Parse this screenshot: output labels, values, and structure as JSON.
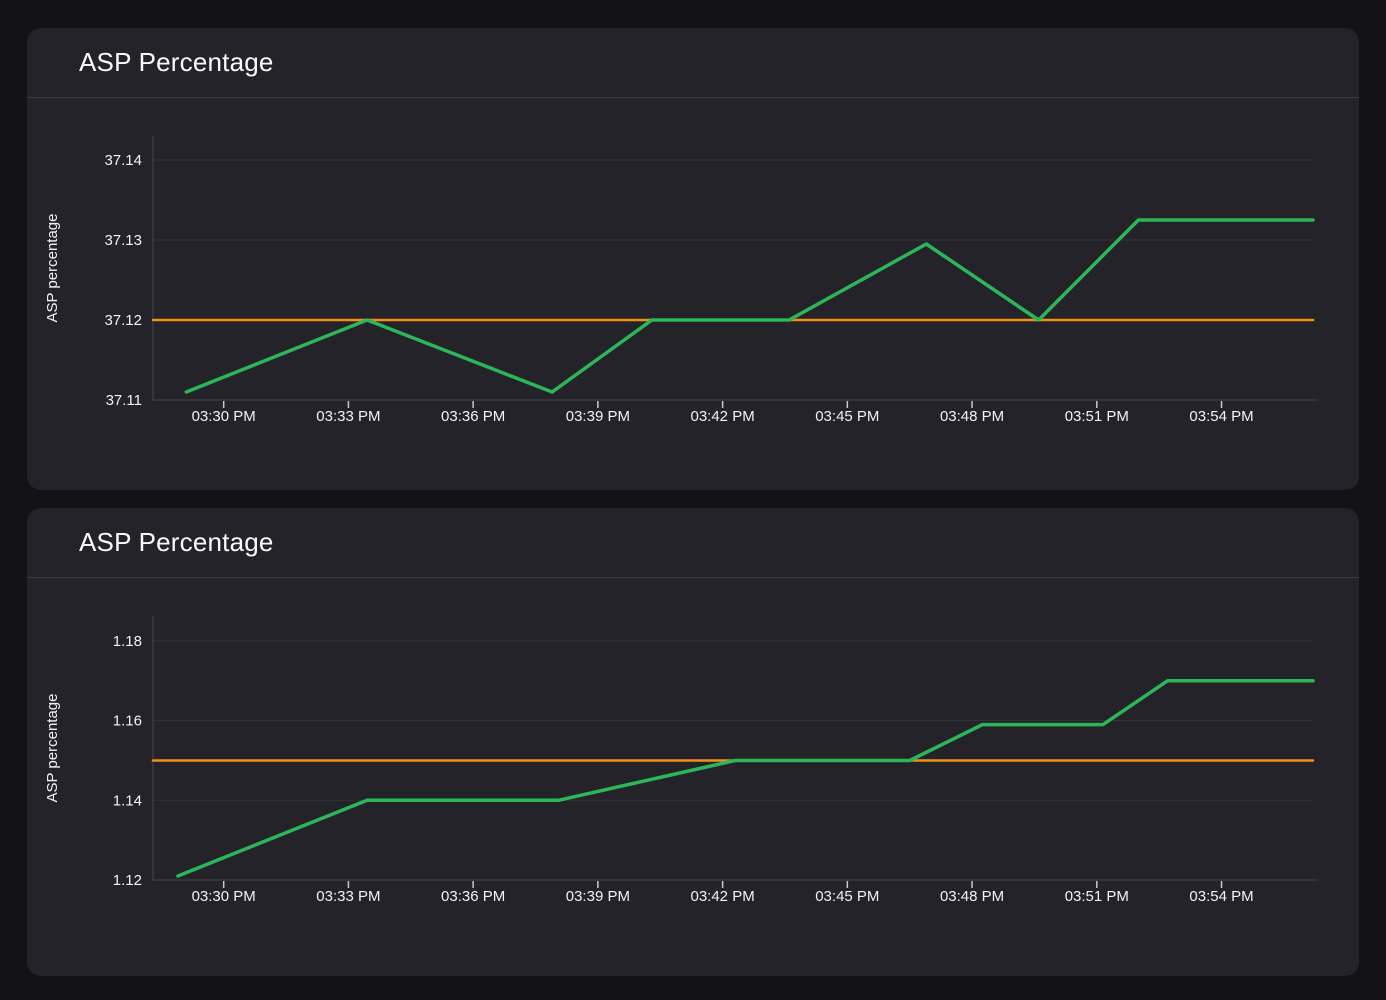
{
  "app": {
    "theme": "dark",
    "background_color": "#131217",
    "panel_color": "#242329"
  },
  "panels": [
    {
      "title": "ASP Percentage"
    },
    {
      "title": "ASP Percentage"
    }
  ],
  "colors": {
    "series_green": "#2cb659",
    "series_orange": "#f0911a",
    "gridline": "#33333a",
    "axis_line": "#46464c",
    "tick_mark": "#c9c9cd",
    "label_text": "#f2f2f4",
    "title_text": "#fafafa",
    "divider": "#3b3a41"
  },
  "chart_data": [
    {
      "type": "line",
      "title": "ASP Percentage",
      "xlabel": "",
      "ylabel": "ASP percentage",
      "legend": "none",
      "grid": "horizontal",
      "x_unit": "minutes after 3:00 PM",
      "x_range": [
        28.3,
        56.2
      ],
      "y_range": [
        37.11,
        37.143
      ],
      "x_ticks": [
        {
          "x": 30,
          "label": "03:30 PM"
        },
        {
          "x": 33,
          "label": "03:33 PM"
        },
        {
          "x": 36,
          "label": "03:36 PM"
        },
        {
          "x": 39,
          "label": "03:39 PM"
        },
        {
          "x": 42,
          "label": "03:42 PM"
        },
        {
          "x": 45,
          "label": "03:45 PM"
        },
        {
          "x": 48,
          "label": "03:48 PM"
        },
        {
          "x": 51,
          "label": "03:51 PM"
        },
        {
          "x": 54,
          "label": "03:54 PM"
        }
      ],
      "y_ticks": [
        {
          "v": 37.11,
          "label": "37.11",
          "grid": false
        },
        {
          "v": 37.12,
          "label": "37.12",
          "grid": true
        },
        {
          "v": 37.13,
          "label": "37.13",
          "grid": true
        },
        {
          "v": 37.14,
          "label": "37.14",
          "grid": true
        }
      ],
      "series": [
        {
          "name": "reference-line",
          "color": "#f0911a",
          "width": 2.5,
          "points": [
            [
              28.3,
              37.12
            ],
            [
              56.2,
              37.12
            ]
          ]
        },
        {
          "name": "asp-percentage",
          "color": "#2cb659",
          "width": 3.5,
          "points": [
            [
              29.1,
              37.111
            ],
            [
              33.45,
              37.12
            ],
            [
              37.9,
              37.111
            ],
            [
              40.3,
              37.12
            ],
            [
              43.6,
              37.12
            ],
            [
              46.9,
              37.1295
            ],
            [
              49.6,
              37.12
            ],
            [
              52.0,
              37.1325
            ],
            [
              56.2,
              37.1325
            ]
          ]
        }
      ]
    },
    {
      "type": "line",
      "title": "ASP Percentage",
      "xlabel": "",
      "ylabel": "ASP percentage",
      "legend": "none",
      "grid": "horizontal",
      "x_unit": "minutes after 3:00 PM",
      "x_range": [
        28.3,
        56.2
      ],
      "y_range": [
        1.12,
        1.18625
      ],
      "x_ticks": [
        {
          "x": 30,
          "label": "03:30 PM"
        },
        {
          "x": 33,
          "label": "03:33 PM"
        },
        {
          "x": 36,
          "label": "03:36 PM"
        },
        {
          "x": 39,
          "label": "03:39 PM"
        },
        {
          "x": 42,
          "label": "03:42 PM"
        },
        {
          "x": 45,
          "label": "03:45 PM"
        },
        {
          "x": 48,
          "label": "03:48 PM"
        },
        {
          "x": 51,
          "label": "03:51 PM"
        },
        {
          "x": 54,
          "label": "03:54 PM"
        }
      ],
      "y_ticks": [
        {
          "v": 1.12,
          "label": "1.12",
          "grid": false
        },
        {
          "v": 1.14,
          "label": "1.14",
          "grid": true
        },
        {
          "v": 1.16,
          "label": "1.16",
          "grid": true
        },
        {
          "v": 1.18,
          "label": "1.18",
          "grid": true
        }
      ],
      "series": [
        {
          "name": "reference-line",
          "color": "#f0911a",
          "width": 2.5,
          "points": [
            [
              28.3,
              1.15
            ],
            [
              56.2,
              1.15
            ]
          ]
        },
        {
          "name": "asp-percentage",
          "color": "#2cb659",
          "width": 3.5,
          "points": [
            [
              28.9,
              1.121
            ],
            [
              33.45,
              1.14
            ],
            [
              38.05,
              1.14
            ],
            [
              42.3,
              1.15
            ],
            [
              46.5,
              1.15
            ],
            [
              48.25,
              1.159
            ],
            [
              51.15,
              1.159
            ],
            [
              52.7,
              1.17
            ],
            [
              56.2,
              1.17
            ]
          ]
        }
      ]
    }
  ]
}
